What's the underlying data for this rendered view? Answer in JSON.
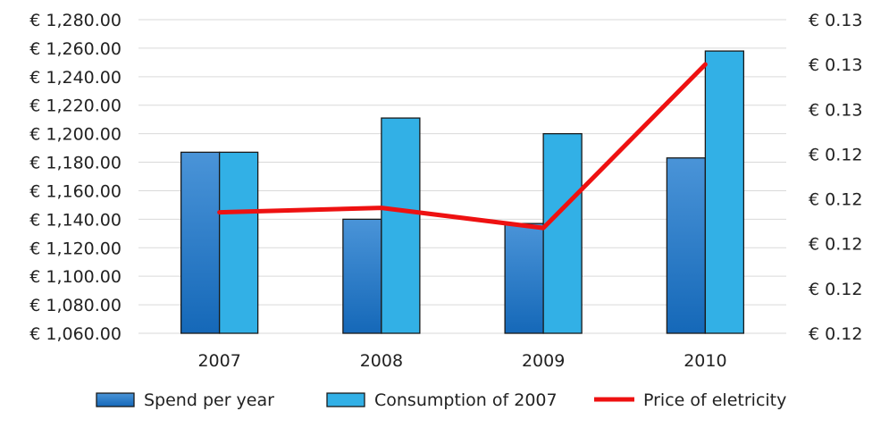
{
  "chart_data": {
    "type": "bar",
    "title": "",
    "xlabel": "",
    "ylabel": "",
    "categories": [
      "2007",
      "2008",
      "2009",
      "2010"
    ],
    "ylim": [
      1060,
      1280
    ],
    "y_ticks": [
      "€ 1,060.00",
      "€ 1,080.00",
      "€ 1,100.00",
      "€ 1,120.00",
      "€ 1,140.00",
      "€ 1,160.00",
      "€ 1,180.00",
      "€ 1,200.00",
      "€ 1,220.00",
      "€ 1,240.00",
      "€ 1,260.00",
      "€ 1,280.00"
    ],
    "y2_ticks": [
      "€ 0.12",
      "€ 0.12",
      "€ 0.12",
      "€ 0.12",
      "€ 0.12",
      "€ 0.13",
      "€ 0.13",
      "€ 0.13"
    ],
    "grid": true,
    "legend_position": "bottom",
    "series": [
      {
        "name": "Spend per year",
        "kind": "bar",
        "axis": "left",
        "color": "#1f78c8",
        "values": [
          1187,
          1140,
          1137,
          1183
        ]
      },
      {
        "name": "Consumption of 2007",
        "kind": "bar",
        "axis": "left",
        "color": "#32b0e6",
        "values": [
          1187,
          1211,
          1200,
          1258
        ]
      },
      {
        "name": "Price of eletricity",
        "kind": "line",
        "axis": "right",
        "color": "#ee1111",
        "values": [
          0.1226,
          0.1228,
          0.1219,
          0.1292
        ]
      }
    ],
    "y2lim": [
      0.1172,
      0.1312
    ]
  }
}
